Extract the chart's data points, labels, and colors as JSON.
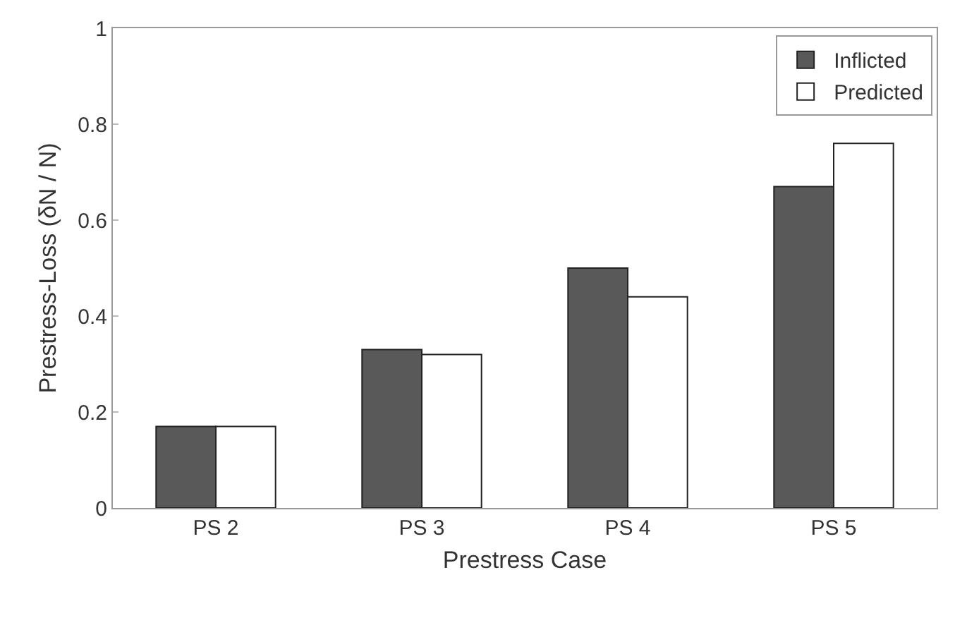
{
  "chart_data": {
    "type": "bar",
    "xlabel": "Prestress Case",
    "ylabel": "Prestress-Loss (δN / N)",
    "categories": [
      "PS 2",
      "PS 3",
      "PS 4",
      "PS 5"
    ],
    "series": [
      {
        "name": "Inflicted",
        "color": "#595959",
        "values": [
          0.17,
          0.33,
          0.5,
          0.67
        ]
      },
      {
        "name": "Predicted",
        "color": "#ffffff",
        "values": [
          0.17,
          0.32,
          0.44,
          0.76
        ]
      }
    ],
    "ylim": [
      0,
      1
    ],
    "yticks": [
      0,
      0.2,
      0.4,
      0.6,
      0.8,
      1
    ],
    "legend": "top right"
  }
}
